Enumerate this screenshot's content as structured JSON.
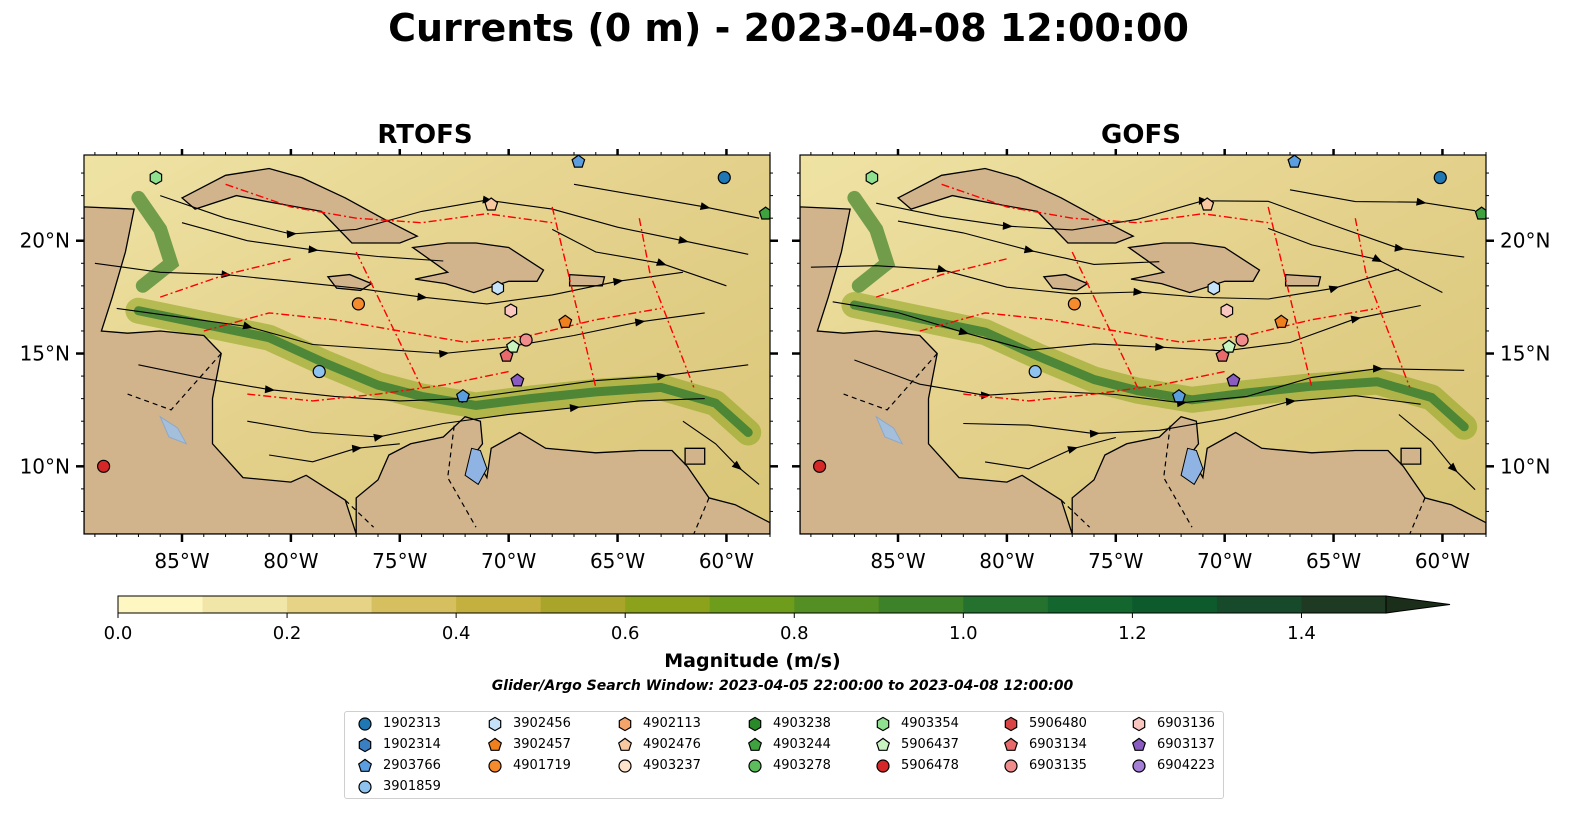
{
  "title": "Currents (0 m) - 2023-04-08 12:00:00",
  "panels": [
    {
      "name": "rtofs",
      "title": "RTOFS"
    },
    {
      "name": "gofs",
      "title": "GOFS"
    }
  ],
  "map_extent": {
    "lon": [
      -89.5,
      -58.0
    ],
    "lat": [
      7.0,
      23.8
    ]
  },
  "lon_ticks": [
    {
      "value": -85,
      "label": "85°W"
    },
    {
      "value": -80,
      "label": "80°W"
    },
    {
      "value": -75,
      "label": "75°W"
    },
    {
      "value": -70,
      "label": "70°W"
    },
    {
      "value": -65,
      "label": "65°W"
    },
    {
      "value": -60,
      "label": "60°W"
    }
  ],
  "lat_ticks": [
    {
      "value": 20,
      "label": "20°N"
    },
    {
      "value": 15,
      "label": "15°N"
    },
    {
      "value": 10,
      "label": "10°N"
    }
  ],
  "colors": {
    "land": "#d2b48c",
    "ocean_low": "#f1e5a8",
    "ocean_high": "#1a2e1a",
    "boundary": "#ff0000"
  },
  "colorbar": {
    "label": "Magnitude (m/s)",
    "min": 0.0,
    "max": 1.5,
    "extend": "max",
    "ticks": [
      {
        "value": 0.0,
        "label": "0.0"
      },
      {
        "value": 0.2,
        "label": "0.2"
      },
      {
        "value": 0.4,
        "label": "0.4"
      },
      {
        "value": 0.6,
        "label": "0.6"
      },
      {
        "value": 0.8,
        "label": "0.8"
      },
      {
        "value": 1.0,
        "label": "1.0"
      },
      {
        "value": 1.2,
        "label": "1.2"
      },
      {
        "value": 1.4,
        "label": "1.4"
      }
    ],
    "bins": [
      "#fff7c2",
      "#f1e5a8",
      "#e6d385",
      "#d6bf5e",
      "#c4b03e",
      "#a9a52b",
      "#8ba21a",
      "#6e9d1c",
      "#538f22",
      "#3d8228",
      "#24722e",
      "#12662e",
      "#0d5a2c",
      "#174a2a",
      "#1e3a22",
      "#1a2e1a"
    ]
  },
  "search_window": "Glider/Argo Search Window: 2023-04-05 22:00:00 to 2023-04-08 12:00:00",
  "legend": [
    {
      "id": "1902313",
      "shape": "circle",
      "color": "#1f77b4"
    },
    {
      "id": "1902314",
      "shape": "hexagon",
      "color": "#3a7fc1"
    },
    {
      "id": "2903766",
      "shape": "pentagon",
      "color": "#5a9ee0"
    },
    {
      "id": "3901859",
      "shape": "circle",
      "color": "#8ec3f0"
    },
    {
      "id": "3902456",
      "shape": "hexagon",
      "color": "#c6e2f8"
    },
    {
      "id": "3902457",
      "shape": "pentagon",
      "color": "#f07f1e"
    },
    {
      "id": "4901719",
      "shape": "circle",
      "color": "#f58b2c"
    },
    {
      "id": "4902113",
      "shape": "hexagon",
      "color": "#f4a46a"
    },
    {
      "id": "4902476",
      "shape": "pentagon",
      "color": "#f8c8a0"
    },
    {
      "id": "4903237",
      "shape": "circle",
      "color": "#fde2cc"
    },
    {
      "id": "4903238",
      "shape": "hexagon",
      "color": "#2a8a2a"
    },
    {
      "id": "4903244",
      "shape": "pentagon",
      "color": "#3ea33e"
    },
    {
      "id": "4903278",
      "shape": "circle",
      "color": "#5dbd5d"
    },
    {
      "id": "4903354",
      "shape": "hexagon",
      "color": "#8fe08f"
    },
    {
      "id": "5906437",
      "shape": "pentagon",
      "color": "#c8f4c0"
    },
    {
      "id": "5906478",
      "shape": "circle",
      "color": "#d62728"
    },
    {
      "id": "5906480",
      "shape": "hexagon",
      "color": "#d94545"
    },
    {
      "id": "6903134",
      "shape": "pentagon",
      "color": "#e86a6a"
    },
    {
      "id": "6903135",
      "shape": "circle",
      "color": "#f08c8c"
    },
    {
      "id": "6903136",
      "shape": "hexagon",
      "color": "#f9c6c0"
    },
    {
      "id": "6903137",
      "shape": "pentagon",
      "color": "#8a5cc2"
    },
    {
      "id": "6904223",
      "shape": "circle",
      "color": "#a57fd6"
    }
  ],
  "markers": [
    {
      "id": "4903354",
      "lon": -86.2,
      "lat": 22.8
    },
    {
      "id": "2903766",
      "lon": -66.8,
      "lat": 23.5
    },
    {
      "id": "1902313",
      "lon": -60.1,
      "lat": 22.8
    },
    {
      "id": "4903244",
      "lon": -58.2,
      "lat": 21.2
    },
    {
      "id": "4902476",
      "lon": -70.8,
      "lat": 21.6
    },
    {
      "id": "3902456",
      "lon": -70.5,
      "lat": 17.9
    },
    {
      "id": "4901719",
      "lon": -76.9,
      "lat": 17.2
    },
    {
      "id": "6903136",
      "lon": -69.9,
      "lat": 16.9
    },
    {
      "id": "3902457",
      "lon": -67.4,
      "lat": 16.4
    },
    {
      "id": "6903135",
      "lon": -69.2,
      "lat": 15.6
    },
    {
      "id": "5906437",
      "lon": -69.8,
      "lat": 15.3
    },
    {
      "id": "6903134",
      "lon": -70.1,
      "lat": 14.9
    },
    {
      "id": "6903137",
      "lon": -69.6,
      "lat": 13.8
    },
    {
      "id": "3901859",
      "lon": -78.7,
      "lat": 14.2
    },
    {
      "id": "2903766",
      "lon": -72.1,
      "lat": 13.1
    },
    {
      "id": "5906478",
      "lon": -88.6,
      "lat": 10.0
    }
  ]
}
